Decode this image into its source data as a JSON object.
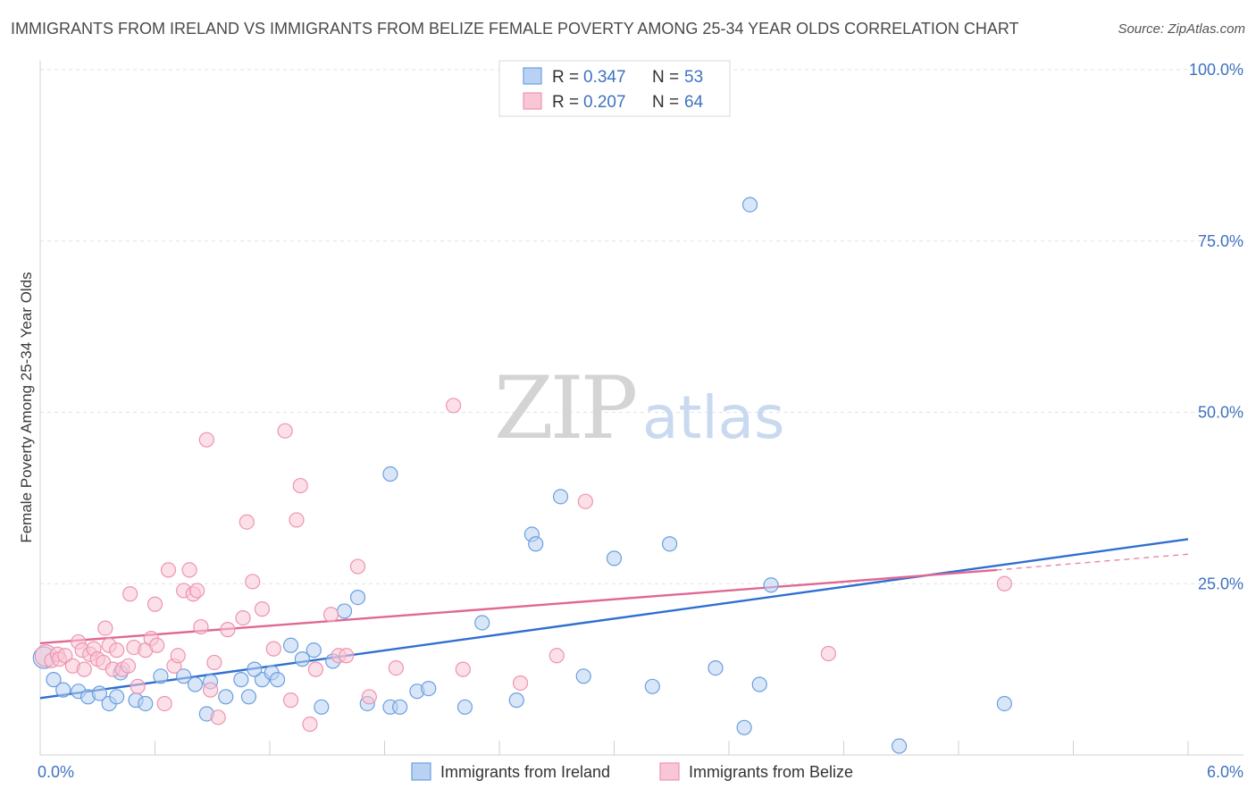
{
  "header": {
    "title": "IMMIGRANTS FROM IRELAND VS IMMIGRANTS FROM BELIZE FEMALE POVERTY AMONG 25-34 YEAR OLDS CORRELATION CHART",
    "source": "Source: ZipAtlas.com"
  },
  "watermark": {
    "zip": "ZIP",
    "atlas": "atlas"
  },
  "legend": {
    "r_label": "R =",
    "n_label": "N =",
    "series": [
      {
        "r": "0.347",
        "n": "53"
      },
      {
        "r": "0.207",
        "n": "64"
      }
    ]
  },
  "chart_data": {
    "type": "scatter",
    "title": "IMMIGRANTS FROM IRELAND VS IMMIGRANTS FROM BELIZE FEMALE POVERTY AMONG 25-34 YEAR OLDS CORRELATION CHART",
    "xlabel": "",
    "ylabel": "Female Poverty Among 25-34 Year Olds",
    "xlim": [
      0,
      6
    ],
    "ylim": [
      0,
      100
    ],
    "x_tick_labels": [
      "0.0%",
      "6.0%"
    ],
    "y_tick_labels": [
      "25.0%",
      "50.0%",
      "75.0%",
      "100.0%"
    ],
    "y_tick_values": [
      25,
      50,
      75,
      100
    ],
    "grid": true,
    "legend_position": "top-center",
    "series": [
      {
        "name": "Immigrants from Ireland",
        "color": "#6a9fe0",
        "fill": "#b9d2f3",
        "trend_color": "#2f6fcf",
        "trend": {
          "x0": 0,
          "y0": 8.3,
          "x1": 6.0,
          "y1": 31.5,
          "dash_from": null
        },
        "points": [
          [
            0.02,
            14.2
          ],
          [
            0.07,
            11.0
          ],
          [
            0.2,
            9.3
          ],
          [
            0.25,
            8.5
          ],
          [
            0.31,
            9.0
          ],
          [
            0.36,
            7.5
          ],
          [
            0.4,
            8.5
          ],
          [
            0.5,
            8.0
          ],
          [
            0.55,
            7.5
          ],
          [
            0.63,
            11.5
          ],
          [
            0.75,
            11.5
          ],
          [
            0.81,
            10.3
          ],
          [
            0.87,
            6.0
          ],
          [
            0.89,
            10.7
          ],
          [
            0.97,
            8.5
          ],
          [
            1.05,
            11.0
          ],
          [
            1.09,
            8.5
          ],
          [
            1.16,
            11.0
          ],
          [
            1.21,
            12.0
          ],
          [
            1.24,
            11.0
          ],
          [
            1.31,
            16.0
          ],
          [
            1.37,
            14.0
          ],
          [
            1.43,
            15.3
          ],
          [
            1.47,
            7.0
          ],
          [
            1.53,
            13.7
          ],
          [
            1.59,
            21.0
          ],
          [
            1.66,
            23.0
          ],
          [
            1.71,
            7.5
          ],
          [
            1.83,
            7.0
          ],
          [
            1.83,
            41.0
          ],
          [
            1.88,
            7.0
          ],
          [
            1.97,
            9.3
          ],
          [
            2.03,
            9.7
          ],
          [
            2.31,
            19.3
          ],
          [
            2.57,
            32.2
          ],
          [
            2.59,
            30.8
          ],
          [
            2.72,
            37.7
          ],
          [
            2.84,
            11.5
          ],
          [
            3.0,
            28.7
          ],
          [
            3.2,
            10.0
          ],
          [
            3.29,
            30.8
          ],
          [
            3.53,
            12.7
          ],
          [
            3.68,
            4.0
          ],
          [
            3.71,
            80.3
          ],
          [
            3.76,
            10.3
          ],
          [
            3.82,
            24.8
          ],
          [
            4.49,
            1.3
          ],
          [
            5.04,
            7.5
          ],
          [
            2.49,
            8.0
          ],
          [
            0.12,
            9.5
          ],
          [
            0.42,
            12.0
          ],
          [
            1.12,
            12.5
          ],
          [
            2.22,
            7.0
          ]
        ]
      },
      {
        "name": "Immigrants from Belize",
        "color": "#ee93b1",
        "fill": "#f9c6d6",
        "trend_color": "#e06893",
        "trend": {
          "x0": 0,
          "y0": 16.3,
          "x1": 5.0,
          "y1": 27.0,
          "dash_from": 5.0,
          "dash_to_x": 6.0,
          "dash_to_y": 29.3
        },
        "points": [
          [
            0.03,
            14.5
          ],
          [
            0.06,
            13.8
          ],
          [
            0.09,
            14.7
          ],
          [
            0.1,
            14.0
          ],
          [
            0.13,
            14.5
          ],
          [
            0.17,
            13.0
          ],
          [
            0.2,
            16.5
          ],
          [
            0.22,
            15.3
          ],
          [
            0.23,
            12.5
          ],
          [
            0.26,
            14.7
          ],
          [
            0.28,
            15.5
          ],
          [
            0.3,
            14.0
          ],
          [
            0.33,
            13.5
          ],
          [
            0.34,
            18.5
          ],
          [
            0.36,
            16.0
          ],
          [
            0.38,
            12.5
          ],
          [
            0.4,
            15.3
          ],
          [
            0.43,
            12.5
          ],
          [
            0.46,
            13.0
          ],
          [
            0.47,
            23.5
          ],
          [
            0.49,
            15.7
          ],
          [
            0.51,
            10.0
          ],
          [
            0.55,
            15.3
          ],
          [
            0.58,
            17.0
          ],
          [
            0.6,
            22.0
          ],
          [
            0.61,
            16.0
          ],
          [
            0.65,
            7.5
          ],
          [
            0.67,
            27.0
          ],
          [
            0.7,
            13.0
          ],
          [
            0.72,
            14.5
          ],
          [
            0.75,
            24.0
          ],
          [
            0.78,
            27.0
          ],
          [
            0.8,
            23.5
          ],
          [
            0.82,
            24.0
          ],
          [
            0.84,
            18.7
          ],
          [
            0.87,
            46.0
          ],
          [
            0.89,
            9.5
          ],
          [
            0.91,
            13.5
          ],
          [
            0.93,
            5.5
          ],
          [
            0.98,
            18.3
          ],
          [
            1.06,
            20.0
          ],
          [
            1.08,
            34.0
          ],
          [
            1.11,
            25.3
          ],
          [
            1.16,
            21.3
          ],
          [
            1.22,
            15.5
          ],
          [
            1.28,
            47.3
          ],
          [
            1.31,
            8.0
          ],
          [
            1.34,
            34.3
          ],
          [
            1.36,
            39.3
          ],
          [
            1.41,
            4.5
          ],
          [
            1.44,
            12.5
          ],
          [
            1.52,
            20.5
          ],
          [
            1.56,
            14.5
          ],
          [
            1.6,
            14.5
          ],
          [
            1.66,
            27.5
          ],
          [
            1.72,
            8.5
          ],
          [
            1.86,
            12.7
          ],
          [
            2.16,
            51.0
          ],
          [
            2.21,
            12.5
          ],
          [
            2.51,
            10.5
          ],
          [
            2.7,
            14.5
          ],
          [
            2.85,
            37.0
          ],
          [
            4.12,
            14.8
          ],
          [
            5.04,
            25.0
          ]
        ]
      }
    ]
  },
  "bottom_legend": {
    "items": [
      "Immigrants from Ireland",
      "Immigrants from Belize"
    ]
  }
}
